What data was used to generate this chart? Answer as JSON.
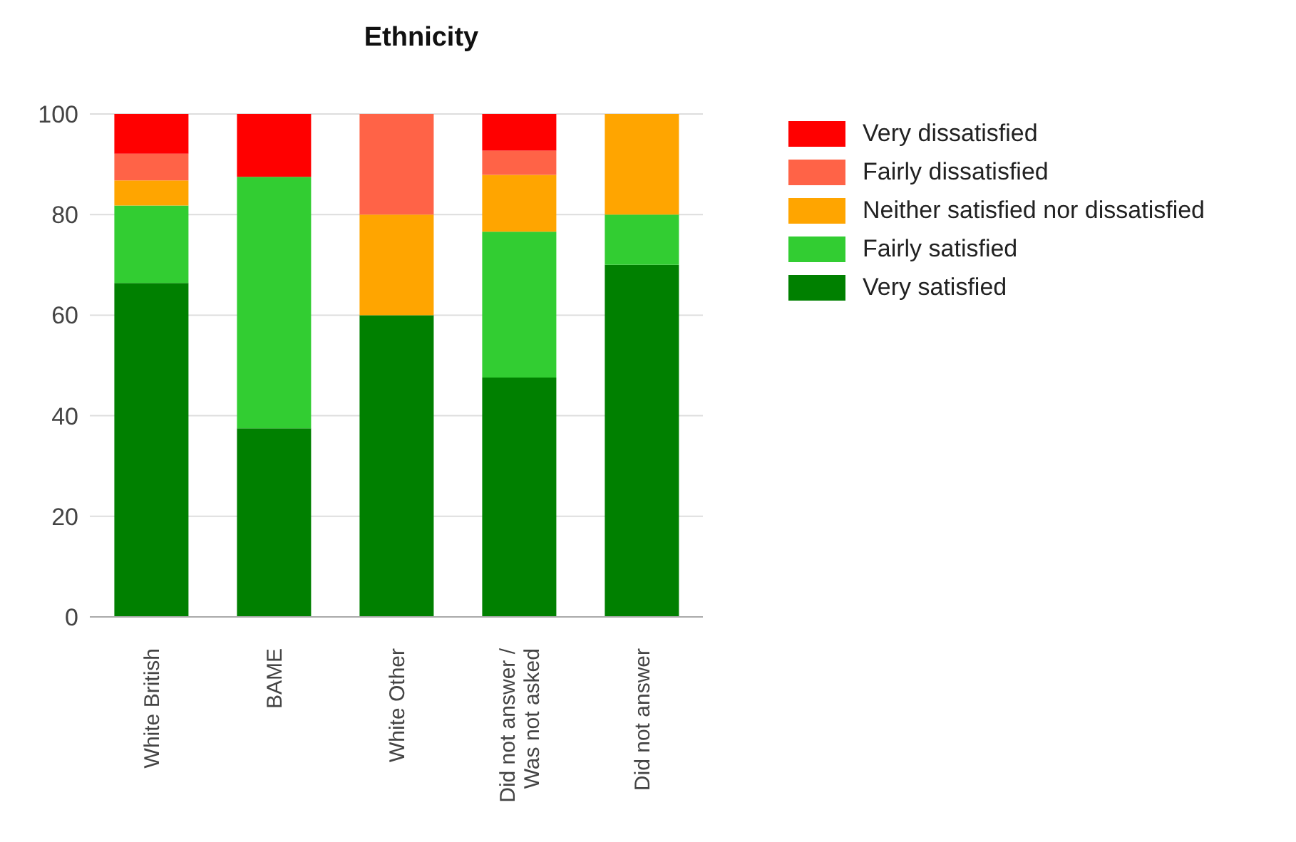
{
  "chart_data": {
    "type": "bar",
    "title": "Ethnicity",
    "stacked": true,
    "categories": [
      "White British",
      "BAME",
      "White Other",
      "Did not answer / Was not asked",
      "Did not answer"
    ],
    "series": [
      {
        "name": "Very satisfied",
        "color": "#008000",
        "values": [
          66.4,
          37.5,
          60,
          47.6,
          70
        ]
      },
      {
        "name": "Fairly satisfied",
        "color": "#32cd32",
        "values": [
          15.4,
          50,
          0,
          29,
          10
        ]
      },
      {
        "name": "Neither satisfied nor dissatisfied",
        "color": "#ffa500",
        "values": [
          5,
          0,
          20,
          11.3,
          20
        ]
      },
      {
        "name": "Fairly dissatisfied",
        "color": "#ff6347",
        "values": [
          5.3,
          0,
          20,
          4.8,
          0
        ]
      },
      {
        "name": "Very dissatisfied",
        "color": "#ff0000",
        "values": [
          7.9,
          12.5,
          0,
          7.3,
          0
        ]
      }
    ],
    "ylim": [
      0,
      100
    ],
    "yticks": [
      0,
      20,
      40,
      60,
      80,
      100
    ],
    "grid": "y",
    "legend": "top right"
  }
}
